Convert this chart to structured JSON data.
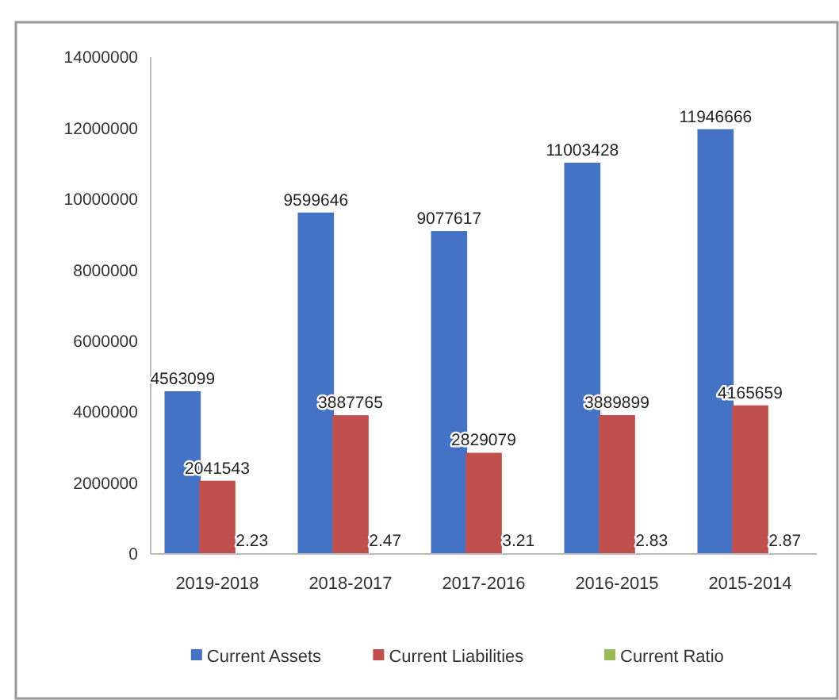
{
  "chart_data": {
    "type": "bar",
    "categories": [
      "2019-2018",
      "2018-2017",
      "2017-2016",
      "2016-2015",
      "2015-2014"
    ],
    "series": [
      {
        "name": "Current Assets",
        "color": "#4472c4",
        "values": [
          4563099,
          9599646,
          9077617,
          11003428,
          11946666
        ]
      },
      {
        "name": "Current Liabilities",
        "color": "#c0504d",
        "values": [
          2041543,
          3887765,
          2829079,
          3889899,
          4165659
        ]
      },
      {
        "name": "Current Ratio",
        "color": "#9bbb59",
        "values": [
          2.23,
          2.47,
          3.21,
          2.83,
          2.87
        ]
      }
    ],
    "ylim": [
      0,
      14000000
    ],
    "yticks": [
      0,
      2000000,
      4000000,
      6000000,
      8000000,
      10000000,
      12000000,
      14000000
    ],
    "data_labels": true,
    "legend": "bottom",
    "grid": false
  }
}
